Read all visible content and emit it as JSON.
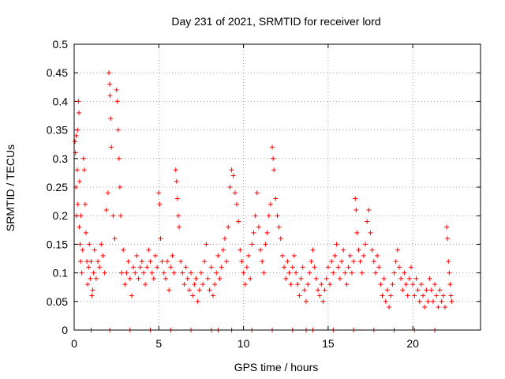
{
  "chart_data": {
    "type": "scatter",
    "title": "Day 231 of 2021, SRMTID for receiver lord",
    "xlabel": "GPS time / hours",
    "ylabel": "SRMTID / TECUs",
    "xlim": [
      0,
      24
    ],
    "ylim": [
      0,
      0.5
    ],
    "xticks": [
      0,
      5,
      10,
      15,
      20
    ],
    "xtick_labels": [
      "0",
      "5",
      "10",
      "15",
      "20"
    ],
    "yticks": [
      0,
      0.05,
      0.1,
      0.15,
      0.2,
      0.25,
      0.3,
      0.35,
      0.4,
      0.45,
      0.5
    ],
    "ytick_labels": [
      "0",
      "0.05",
      "0.1",
      "0.15",
      "0.2",
      "0.25",
      "0.3",
      "0.35",
      "0.4",
      "0.45",
      "0.5"
    ],
    "grid": true,
    "marker": "+",
    "color": "#ff0000",
    "series": [
      {
        "name": "SRMTID",
        "points": [
          [
            0.05,
            0.33
          ],
          [
            0.08,
            0.31
          ],
          [
            0.1,
            0.25
          ],
          [
            0.12,
            0.34
          ],
          [
            0.15,
            0.2
          ],
          [
            0.18,
            0.28
          ],
          [
            0.2,
            0.35
          ],
          [
            0.22,
            0.22
          ],
          [
            0.25,
            0.4
          ],
          [
            0.28,
            0.38
          ],
          [
            0.3,
            0.18
          ],
          [
            0.32,
            0.26
          ],
          [
            0.35,
            0.15
          ],
          [
            0.38,
            0.12
          ],
          [
            0.4,
            0.2
          ],
          [
            0.45,
            0.1
          ],
          [
            0.5,
            0.14
          ],
          [
            0.55,
            0.3
          ],
          [
            0.6,
            0.28
          ],
          [
            0.65,
            0.22
          ],
          [
            0.7,
            0.17
          ],
          [
            0.75,
            0.12
          ],
          [
            0.8,
            0.08
          ],
          [
            0.85,
            0.11
          ],
          [
            0.9,
            0.15
          ],
          [
            0.95,
            0.09
          ],
          [
            1.0,
            0.12
          ],
          [
            1.05,
            0.06
          ],
          [
            1.1,
            0.07
          ],
          [
            1.15,
            0.1
          ],
          [
            1.2,
            0.14
          ],
          [
            1.3,
            0.09
          ],
          [
            1.4,
            0.12
          ],
          [
            1.5,
            0.11
          ],
          [
            1.6,
            0.15
          ],
          [
            1.7,
            0.13
          ],
          [
            1.8,
            0.1
          ],
          [
            1.9,
            0.21
          ],
          [
            2.0,
            0.24
          ],
          [
            2.05,
            0.45
          ],
          [
            2.1,
            0.43
          ],
          [
            2.12,
            0.41
          ],
          [
            2.15,
            0.37
          ],
          [
            2.2,
            0.32
          ],
          [
            2.3,
            0.2
          ],
          [
            2.4,
            0.16
          ],
          [
            2.5,
            0.42
          ],
          [
            2.55,
            0.4
          ],
          [
            2.6,
            0.35
          ],
          [
            2.65,
            0.3
          ],
          [
            2.7,
            0.25
          ],
          [
            2.75,
            0.2
          ],
          [
            2.8,
            0.1
          ],
          [
            2.9,
            0.14
          ],
          [
            3.0,
            0.08
          ],
          [
            3.1,
            0.1
          ],
          [
            3.2,
            0.12
          ],
          [
            3.3,
            0.09
          ],
          [
            3.4,
            0.06
          ],
          [
            3.5,
            0.11
          ],
          [
            3.6,
            0.1
          ],
          [
            3.7,
            0.13
          ],
          [
            3.8,
            0.09
          ],
          [
            3.9,
            0.11
          ],
          [
            4.0,
            0.12
          ],
          [
            4.1,
            0.1
          ],
          [
            4.2,
            0.08
          ],
          [
            4.3,
            0.11
          ],
          [
            4.4,
            0.14
          ],
          [
            4.5,
            0.12
          ],
          [
            4.6,
            0.1
          ],
          [
            4.7,
            0.09
          ],
          [
            4.8,
            0.13
          ],
          [
            4.9,
            0.11
          ],
          [
            5.0,
            0.24
          ],
          [
            5.05,
            0.22
          ],
          [
            5.1,
            0.16
          ],
          [
            5.2,
            0.12
          ],
          [
            5.3,
            0.1
          ],
          [
            5.4,
            0.09
          ],
          [
            5.5,
            0.12
          ],
          [
            5.6,
            0.07
          ],
          [
            5.7,
            0.11
          ],
          [
            5.8,
            0.13
          ],
          [
            5.9,
            0.1
          ],
          [
            6.0,
            0.28
          ],
          [
            6.05,
            0.26
          ],
          [
            6.1,
            0.23
          ],
          [
            6.15,
            0.2
          ],
          [
            6.2,
            0.18
          ],
          [
            6.3,
            0.12
          ],
          [
            6.4,
            0.1
          ],
          [
            6.5,
            0.08
          ],
          [
            6.6,
            0.11
          ],
          [
            6.7,
            0.09
          ],
          [
            6.8,
            0.07
          ],
          [
            6.9,
            0.1
          ],
          [
            7.0,
            0.06
          ],
          [
            7.1,
            0.08
          ],
          [
            7.2,
            0.09
          ],
          [
            7.3,
            0.05
          ],
          [
            7.4,
            0.07
          ],
          [
            7.5,
            0.1
          ],
          [
            7.6,
            0.08
          ],
          [
            7.7,
            0.12
          ],
          [
            7.8,
            0.15
          ],
          [
            7.9,
            0.09
          ],
          [
            8.0,
            0.07
          ],
          [
            8.1,
            0.11
          ],
          [
            8.2,
            0.06
          ],
          [
            8.3,
            0.08
          ],
          [
            8.4,
            0.1
          ],
          [
            8.5,
            0.13
          ],
          [
            8.6,
            0.09
          ],
          [
            8.7,
            0.11
          ],
          [
            8.8,
            0.14
          ],
          [
            8.9,
            0.16
          ],
          [
            9.0,
            0.12
          ],
          [
            9.1,
            0.18
          ],
          [
            9.2,
            0.25
          ],
          [
            9.3,
            0.28
          ],
          [
            9.4,
            0.27
          ],
          [
            9.5,
            0.24
          ],
          [
            9.6,
            0.22
          ],
          [
            9.7,
            0.19
          ],
          [
            9.8,
            0.14
          ],
          [
            9.9,
            0.12
          ],
          [
            10.0,
            0.1
          ],
          [
            10.1,
            0.08
          ],
          [
            10.2,
            0.11
          ],
          [
            10.3,
            0.13
          ],
          [
            10.4,
            0.09
          ],
          [
            10.5,
            0.15
          ],
          [
            10.6,
            0.17
          ],
          [
            10.7,
            0.2
          ],
          [
            10.8,
            0.24
          ],
          [
            10.9,
            0.18
          ],
          [
            11.0,
            0.14
          ],
          [
            11.1,
            0.12
          ],
          [
            11.2,
            0.1
          ],
          [
            11.3,
            0.15
          ],
          [
            11.4,
            0.17
          ],
          [
            11.5,
            0.2
          ],
          [
            11.6,
            0.22
          ],
          [
            11.7,
            0.32
          ],
          [
            11.75,
            0.3
          ],
          [
            11.8,
            0.28
          ],
          [
            11.9,
            0.23
          ],
          [
            12.0,
            0.2
          ],
          [
            12.1,
            0.18
          ],
          [
            12.2,
            0.16
          ],
          [
            12.3,
            0.13
          ],
          [
            12.4,
            0.11
          ],
          [
            12.5,
            0.09
          ],
          [
            12.6,
            0.12
          ],
          [
            12.7,
            0.1
          ],
          [
            12.8,
            0.08
          ],
          [
            12.9,
            0.11
          ],
          [
            13.0,
            0.13
          ],
          [
            13.1,
            0.1
          ],
          [
            13.2,
            0.08
          ],
          [
            13.3,
            0.06
          ],
          [
            13.4,
            0.09
          ],
          [
            13.5,
            0.11
          ],
          [
            13.6,
            0.07
          ],
          [
            13.7,
            0.05
          ],
          [
            13.8,
            0.08
          ],
          [
            13.9,
            0.1
          ],
          [
            14.0,
            0.12
          ],
          [
            14.1,
            0.14
          ],
          [
            14.2,
            0.11
          ],
          [
            14.3,
            0.09
          ],
          [
            14.4,
            0.07
          ],
          [
            14.5,
            0.06
          ],
          [
            14.6,
            0.08
          ],
          [
            14.7,
            0.05
          ],
          [
            14.8,
            0.07
          ],
          [
            14.9,
            0.09
          ],
          [
            15.0,
            0.11
          ],
          [
            15.1,
            0.08
          ],
          [
            15.2,
            0.12
          ],
          [
            15.3,
            0.1
          ],
          [
            15.4,
            0.13
          ],
          [
            15.5,
            0.15
          ],
          [
            15.6,
            0.11
          ],
          [
            15.7,
            0.09
          ],
          [
            15.8,
            0.12
          ],
          [
            15.9,
            0.14
          ],
          [
            16.0,
            0.1
          ],
          [
            16.1,
            0.08
          ],
          [
            16.2,
            0.11
          ],
          [
            16.3,
            0.13
          ],
          [
            16.4,
            0.1
          ],
          [
            16.5,
            0.12
          ],
          [
            16.6,
            0.23
          ],
          [
            16.65,
            0.21
          ],
          [
            16.7,
            0.17
          ],
          [
            16.8,
            0.14
          ],
          [
            16.9,
            0.12
          ],
          [
            17.0,
            0.1
          ],
          [
            17.1,
            0.13
          ],
          [
            17.2,
            0.15
          ],
          [
            17.3,
            0.19
          ],
          [
            17.4,
            0.21
          ],
          [
            17.5,
            0.17
          ],
          [
            17.6,
            0.14
          ],
          [
            17.7,
            0.12
          ],
          [
            17.8,
            0.1
          ],
          [
            17.9,
            0.13
          ],
          [
            18.0,
            0.11
          ],
          [
            18.1,
            0.08
          ],
          [
            18.2,
            0.06
          ],
          [
            18.3,
            0.09
          ],
          [
            18.4,
            0.05
          ],
          [
            18.5,
            0.07
          ],
          [
            18.6,
            0.04
          ],
          [
            18.7,
            0.06
          ],
          [
            18.8,
            0.08
          ],
          [
            18.9,
            0.1
          ],
          [
            19.0,
            0.12
          ],
          [
            19.1,
            0.14
          ],
          [
            19.2,
            0.11
          ],
          [
            19.3,
            0.09
          ],
          [
            19.4,
            0.07
          ],
          [
            19.5,
            0.1
          ],
          [
            19.6,
            0.08
          ],
          [
            19.7,
            0.06
          ],
          [
            19.8,
            0.09
          ],
          [
            19.9,
            0.11
          ],
          [
            20.0,
            0.08
          ],
          [
            20.1,
            0.06
          ],
          [
            20.2,
            0.09
          ],
          [
            20.3,
            0.07
          ],
          [
            20.4,
            0.05
          ],
          [
            20.5,
            0.08
          ],
          [
            20.6,
            0.06
          ],
          [
            20.7,
            0.04
          ],
          [
            20.8,
            0.07
          ],
          [
            20.9,
            0.05
          ],
          [
            21.0,
            0.09
          ],
          [
            21.1,
            0.07
          ],
          [
            21.2,
            0.05
          ],
          [
            21.3,
            0.08
          ],
          [
            21.4,
            0.06
          ],
          [
            21.5,
            0.04
          ],
          [
            21.6,
            0.07
          ],
          [
            21.7,
            0.05
          ],
          [
            21.8,
            0.06
          ],
          [
            21.9,
            0.04
          ],
          [
            22.0,
            0.18
          ],
          [
            22.05,
            0.16
          ],
          [
            22.1,
            0.12
          ],
          [
            22.15,
            0.1
          ],
          [
            22.2,
            0.08
          ],
          [
            22.25,
            0.06
          ],
          [
            22.3,
            0.05
          ]
        ]
      },
      {
        "name": "zero markers",
        "points": [
          [
            1.0,
            0
          ],
          [
            2.1,
            0
          ],
          [
            3.3,
            0
          ],
          [
            4.5,
            0
          ],
          [
            5.7,
            0
          ],
          [
            6.9,
            0
          ],
          [
            8.1,
            0
          ],
          [
            8.5,
            0
          ],
          [
            9.3,
            0
          ],
          [
            10.5,
            0
          ],
          [
            11.7,
            0
          ],
          [
            12.9,
            0
          ],
          [
            13.7,
            0
          ],
          [
            14.1,
            0
          ],
          [
            15.3,
            0
          ],
          [
            16.5,
            0
          ],
          [
            17.7,
            0
          ],
          [
            18.9,
            0
          ],
          [
            20.1,
            0
          ],
          [
            21.3,
            0
          ]
        ]
      }
    ]
  }
}
